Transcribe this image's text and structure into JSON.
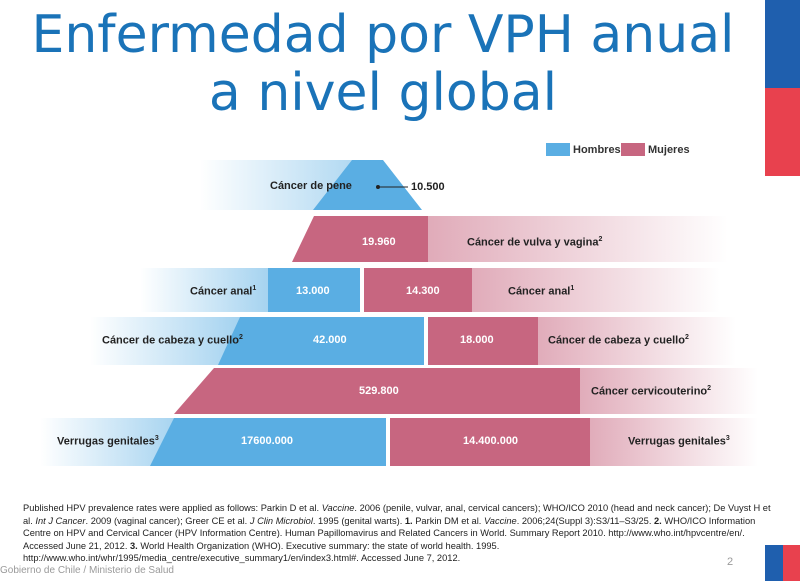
{
  "title": {
    "line1": "Enfermedad por VPH anual",
    "line2": "a nivel global"
  },
  "legend": {
    "men": "Hombres",
    "women": "Mujeres"
  },
  "colors": {
    "men": "#5aaee3",
    "women": "#c76680",
    "title": "#1a73b8",
    "flag_blue": "#1f5fae",
    "flag_red": "#e8414e"
  },
  "rows": [
    {
      "men_label": "Cáncer de pene",
      "men_value": "10.500"
    },
    {
      "women_value": "19.960",
      "women_label": "Cáncer de vulva y vagina",
      "women_sup": "2"
    },
    {
      "men_label": "Cáncer anal",
      "men_sup": "1",
      "men_value": "13.000",
      "women_value": "14.300",
      "women_label": "Cáncer anal",
      "women_sup": "1"
    },
    {
      "men_label": "Cáncer de cabeza y cuello",
      "men_sup": "2",
      "men_value": "42.000",
      "women_value": "18.000",
      "women_label": "Cáncer de cabeza y cuello",
      "women_sup": "2"
    },
    {
      "women_value": "529.800",
      "women_label": "Cáncer cervicouterino",
      "women_sup": "2"
    },
    {
      "men_label": "Verrugas genitales",
      "men_sup": "3",
      "men_value": "17600.000",
      "women_value": "14.400.000",
      "women_label": "Verrugas genitales",
      "women_sup": "3"
    }
  ],
  "references": {
    "p1": "Published HPV prevalence rates were applied as follows: Parkin D et al. ",
    "p1_i": "Vaccine",
    "p2": ". 2006 (penile, vulvar, anal, cervical cancers);  WHO/ICO 2010 (head and neck cancer); De Vuyst H et al. ",
    "p2_i": "Int J Cancer",
    "p3": ". 2009 (vaginal cancer); Greer CE et al. ",
    "p3_i": "J Clin Microbiol",
    "p4": ". 1995 (genital warts). ",
    "n1": "1.",
    "p5": " Parkin DM et al. ",
    "p5_i": "Vaccine",
    "p6": ". 2006;24(Suppl 3):S3/11–S3/25. ",
    "n2": "2.",
    "p7": " WHO/ICO Information Centre on HPV and Cervical Cancer (HPV Information Centre). Human Papillomavirus and Related Cancers in World. Summary Report 2010. http://www.who.int/hpvcentre/en/. Accessed June 21, 2012. ",
    "n3": "3.",
    "p8": " World Health Organization (WHO). Executive summary: the state of world health. 1995. http://www.who.int/whr/1995/media_centre/executive_summary1/en/index3.html#. Accessed June 7, 2012."
  },
  "footer": "Gobierno de Chile / Ministerio de Salud",
  "page_number": "2"
}
